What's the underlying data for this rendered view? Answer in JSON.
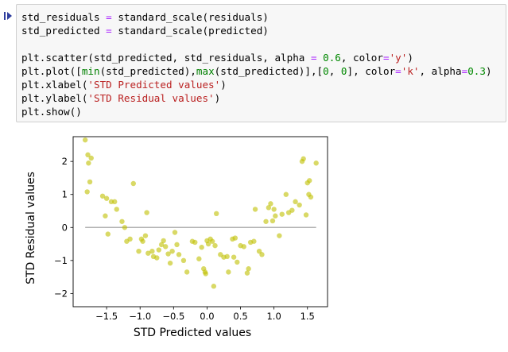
{
  "cell": {
    "code_lines": [
      [
        {
          "t": "std_residuals "
        },
        {
          "t": "=",
          "c": "op"
        },
        {
          "t": " standard_scale(residuals)"
        }
      ],
      [
        {
          "t": "std_predicted "
        },
        {
          "t": "=",
          "c": "op"
        },
        {
          "t": " standard_scale(predicted)"
        }
      ],
      [],
      [
        {
          "t": "plt.scatter(std_predicted, std_residuals, alpha "
        },
        {
          "t": "=",
          "c": "op"
        },
        {
          "t": " "
        },
        {
          "t": "0.6",
          "c": "num"
        },
        {
          "t": ", color"
        },
        {
          "t": "=",
          "c": "op"
        },
        {
          "t": "'y'",
          "c": "str"
        },
        {
          "t": ")"
        }
      ],
      [
        {
          "t": "plt.plot(["
        },
        {
          "t": "min",
          "c": "builtin"
        },
        {
          "t": "(std_predicted),"
        },
        {
          "t": "max",
          "c": "builtin"
        },
        {
          "t": "(std_predicted)],["
        },
        {
          "t": "0",
          "c": "num"
        },
        {
          "t": ", "
        },
        {
          "t": "0",
          "c": "num"
        },
        {
          "t": "], color"
        },
        {
          "t": "=",
          "c": "op"
        },
        {
          "t": "'k'",
          "c": "str"
        },
        {
          "t": ", alpha"
        },
        {
          "t": "=",
          "c": "op"
        },
        {
          "t": "0.3",
          "c": "num"
        },
        {
          "t": ")"
        }
      ],
      [
        {
          "t": "plt.xlabel("
        },
        {
          "t": "'STD Predicted values'",
          "c": "str"
        },
        {
          "t": ")"
        }
      ],
      [
        {
          "t": "plt.ylabel("
        },
        {
          "t": "'STD Residual values'",
          "c": "str"
        },
        {
          "t": ")"
        }
      ],
      [
        {
          "t": "plt.show()"
        }
      ]
    ]
  },
  "chart_data": {
    "type": "scatter",
    "xlabel": "STD Predicted values",
    "ylabel": "STD Residual values",
    "xlim": [
      -2.0,
      1.8
    ],
    "ylim": [
      -2.4,
      2.75
    ],
    "xticks": [
      -1.5,
      -1.0,
      -0.5,
      0.0,
      0.5,
      1.0,
      1.5
    ],
    "xtick_labels": [
      "−1.5",
      "−1.0",
      "−0.5",
      "0.0",
      "0.5",
      "1.0",
      "1.5"
    ],
    "yticks": [
      -2,
      -1,
      0,
      1,
      2
    ],
    "ytick_labels": [
      "−2",
      "−1",
      "0",
      "1",
      "2"
    ],
    "grid": false,
    "point_color": "#bfbf00",
    "point_alpha": 0.6,
    "line_color": "#000000",
    "line_alpha": 0.3,
    "reference_line": {
      "x": [
        -1.82,
        1.63
      ],
      "y": [
        0,
        0
      ]
    },
    "points": [
      [
        -1.82,
        2.65
      ],
      [
        -1.78,
        2.2
      ],
      [
        -1.73,
        2.1
      ],
      [
        -1.77,
        1.95
      ],
      [
        -1.75,
        1.38
      ],
      [
        -1.79,
        1.08
      ],
      [
        -1.56,
        0.95
      ],
      [
        -1.5,
        0.88
      ],
      [
        -1.43,
        0.78
      ],
      [
        -1.38,
        0.78
      ],
      [
        -1.52,
        0.35
      ],
      [
        -1.48,
        -0.2
      ],
      [
        -1.35,
        0.55
      ],
      [
        -1.27,
        0.18
      ],
      [
        -1.23,
        0.0
      ],
      [
        -1.2,
        -0.42
      ],
      [
        -1.15,
        -0.35
      ],
      [
        -1.1,
        1.33
      ],
      [
        -1.02,
        -0.72
      ],
      [
        -0.98,
        -0.35
      ],
      [
        -0.96,
        -0.42
      ],
      [
        -0.92,
        -0.25
      ],
      [
        -0.9,
        0.45
      ],
      [
        -0.88,
        -0.78
      ],
      [
        -0.82,
        -0.72
      ],
      [
        -0.8,
        -0.88
      ],
      [
        -0.75,
        -0.92
      ],
      [
        -0.72,
        -0.68
      ],
      [
        -0.68,
        -0.52
      ],
      [
        -0.65,
        -0.4
      ],
      [
        -0.62,
        -0.58
      ],
      [
        -0.58,
        -0.8
      ],
      [
        -0.55,
        -1.08
      ],
      [
        -0.52,
        -0.72
      ],
      [
        -0.48,
        -0.15
      ],
      [
        -0.45,
        -0.52
      ],
      [
        -0.42,
        -0.82
      ],
      [
        -0.35,
        -1.0
      ],
      [
        -0.3,
        -1.35
      ],
      [
        -0.22,
        -0.42
      ],
      [
        -0.18,
        -0.45
      ],
      [
        -0.12,
        -0.95
      ],
      [
        -0.08,
        -0.6
      ],
      [
        -0.05,
        -1.25
      ],
      [
        -0.03,
        -1.35
      ],
      [
        -0.02,
        -1.4
      ],
      [
        0.0,
        -0.4
      ],
      [
        0.02,
        -0.5
      ],
      [
        0.05,
        -0.35
      ],
      [
        0.08,
        -0.42
      ],
      [
        0.1,
        -1.78
      ],
      [
        0.12,
        -0.55
      ],
      [
        0.14,
        0.42
      ],
      [
        0.2,
        -0.82
      ],
      [
        0.25,
        -0.9
      ],
      [
        0.3,
        -0.88
      ],
      [
        0.32,
        -1.35
      ],
      [
        0.38,
        -0.35
      ],
      [
        0.4,
        -0.9
      ],
      [
        0.42,
        -0.32
      ],
      [
        0.45,
        -1.05
      ],
      [
        0.5,
        -0.55
      ],
      [
        0.55,
        -0.58
      ],
      [
        0.6,
        -1.38
      ],
      [
        0.62,
        -1.25
      ],
      [
        0.65,
        -0.45
      ],
      [
        0.7,
        -0.42
      ],
      [
        0.72,
        0.55
      ],
      [
        0.78,
        -0.72
      ],
      [
        0.82,
        -0.82
      ],
      [
        0.88,
        0.18
      ],
      [
        0.92,
        0.6
      ],
      [
        0.95,
        0.72
      ],
      [
        0.98,
        0.2
      ],
      [
        1.0,
        0.55
      ],
      [
        1.02,
        0.35
      ],
      [
        1.08,
        -0.25
      ],
      [
        1.12,
        0.4
      ],
      [
        1.18,
        1.0
      ],
      [
        1.22,
        0.45
      ],
      [
        1.27,
        0.52
      ],
      [
        1.32,
        0.78
      ],
      [
        1.38,
        0.68
      ],
      [
        1.42,
        2.0
      ],
      [
        1.44,
        2.08
      ],
      [
        1.48,
        0.38
      ],
      [
        1.5,
        1.35
      ],
      [
        1.52,
        1.0
      ],
      [
        1.55,
        0.92
      ],
      [
        1.53,
        1.42
      ],
      [
        1.63,
        1.95
      ]
    ]
  }
}
